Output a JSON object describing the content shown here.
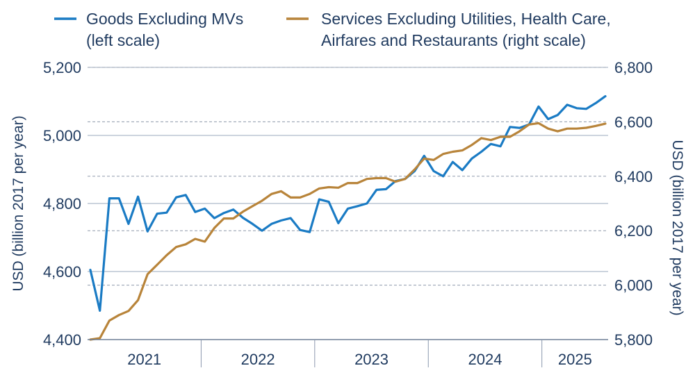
{
  "chart_data": {
    "type": "line",
    "legend": [
      {
        "lines": [
          "Goods Excluding MVs",
          "(left scale)"
        ],
        "color": "#1a7bc4"
      },
      {
        "lines": [
          "Services Excluding Utilities, Health Care,",
          "Airfares and Restaurants (right scale)"
        ],
        "color": "#b8843a"
      }
    ],
    "left_axis": {
      "label": "USD (billion 2017 per year)",
      "min": 4400,
      "max": 5200,
      "ticks": [
        {
          "value": 4400,
          "label": "4,400"
        },
        {
          "value": 4600,
          "label": "4,600"
        },
        {
          "value": 4800,
          "label": "4,800"
        },
        {
          "value": 5000,
          "label": "5,000"
        },
        {
          "value": 5200,
          "label": "5,200"
        }
      ]
    },
    "right_axis": {
      "label": "USD (billion 2017 per year)",
      "min": 5800,
      "max": 6800,
      "ticks": [
        {
          "value": 5800,
          "label": "5,800"
        },
        {
          "value": 6000,
          "label": "6,000"
        },
        {
          "value": 6200,
          "label": "6,200"
        },
        {
          "value": 6400,
          "label": "6,400"
        },
        {
          "value": 6600,
          "label": "6,600"
        },
        {
          "value": 6800,
          "label": "6,800"
        }
      ]
    },
    "x_axis": {
      "start": "2021-01",
      "n_months": 55,
      "year_labels": [
        "2021",
        "2022",
        "2023",
        "2024",
        "2025"
      ]
    },
    "series": [
      {
        "name": "Goods Excluding MVs",
        "axis": "left",
        "color": "#1a7bc4",
        "values": [
          4605,
          4485,
          4815,
          4815,
          4740,
          4820,
          4718,
          4770,
          4773,
          4818,
          4825,
          4775,
          4785,
          4757,
          4772,
          4782,
          4758,
          4740,
          4720,
          4740,
          4750,
          4757,
          4722,
          4716,
          4812,
          4805,
          4742,
          4785,
          4792,
          4800,
          4840,
          4842,
          4866,
          4872,
          4895,
          4940,
          4895,
          4880,
          4922,
          4898,
          4932,
          4952,
          4975,
          4968,
          5025,
          5022,
          5032,
          5085,
          5048,
          5060,
          5090,
          5080,
          5078,
          5095,
          5115
        ]
      },
      {
        "name": "Services Excluding Utilities, Health Care, Airfares and Restaurants",
        "axis": "right",
        "color": "#b8843a",
        "values": [
          5800,
          5805,
          5870,
          5890,
          5905,
          5945,
          6040,
          6075,
          6110,
          6140,
          6150,
          6170,
          6160,
          6210,
          6245,
          6245,
          6270,
          6290,
          6310,
          6335,
          6345,
          6322,
          6322,
          6335,
          6355,
          6360,
          6358,
          6375,
          6375,
          6390,
          6393,
          6393,
          6380,
          6390,
          6425,
          6465,
          6460,
          6482,
          6490,
          6495,
          6515,
          6540,
          6533,
          6545,
          6545,
          6565,
          6590,
          6595,
          6575,
          6565,
          6575,
          6575,
          6578,
          6585,
          6593
        ]
      }
    ]
  }
}
